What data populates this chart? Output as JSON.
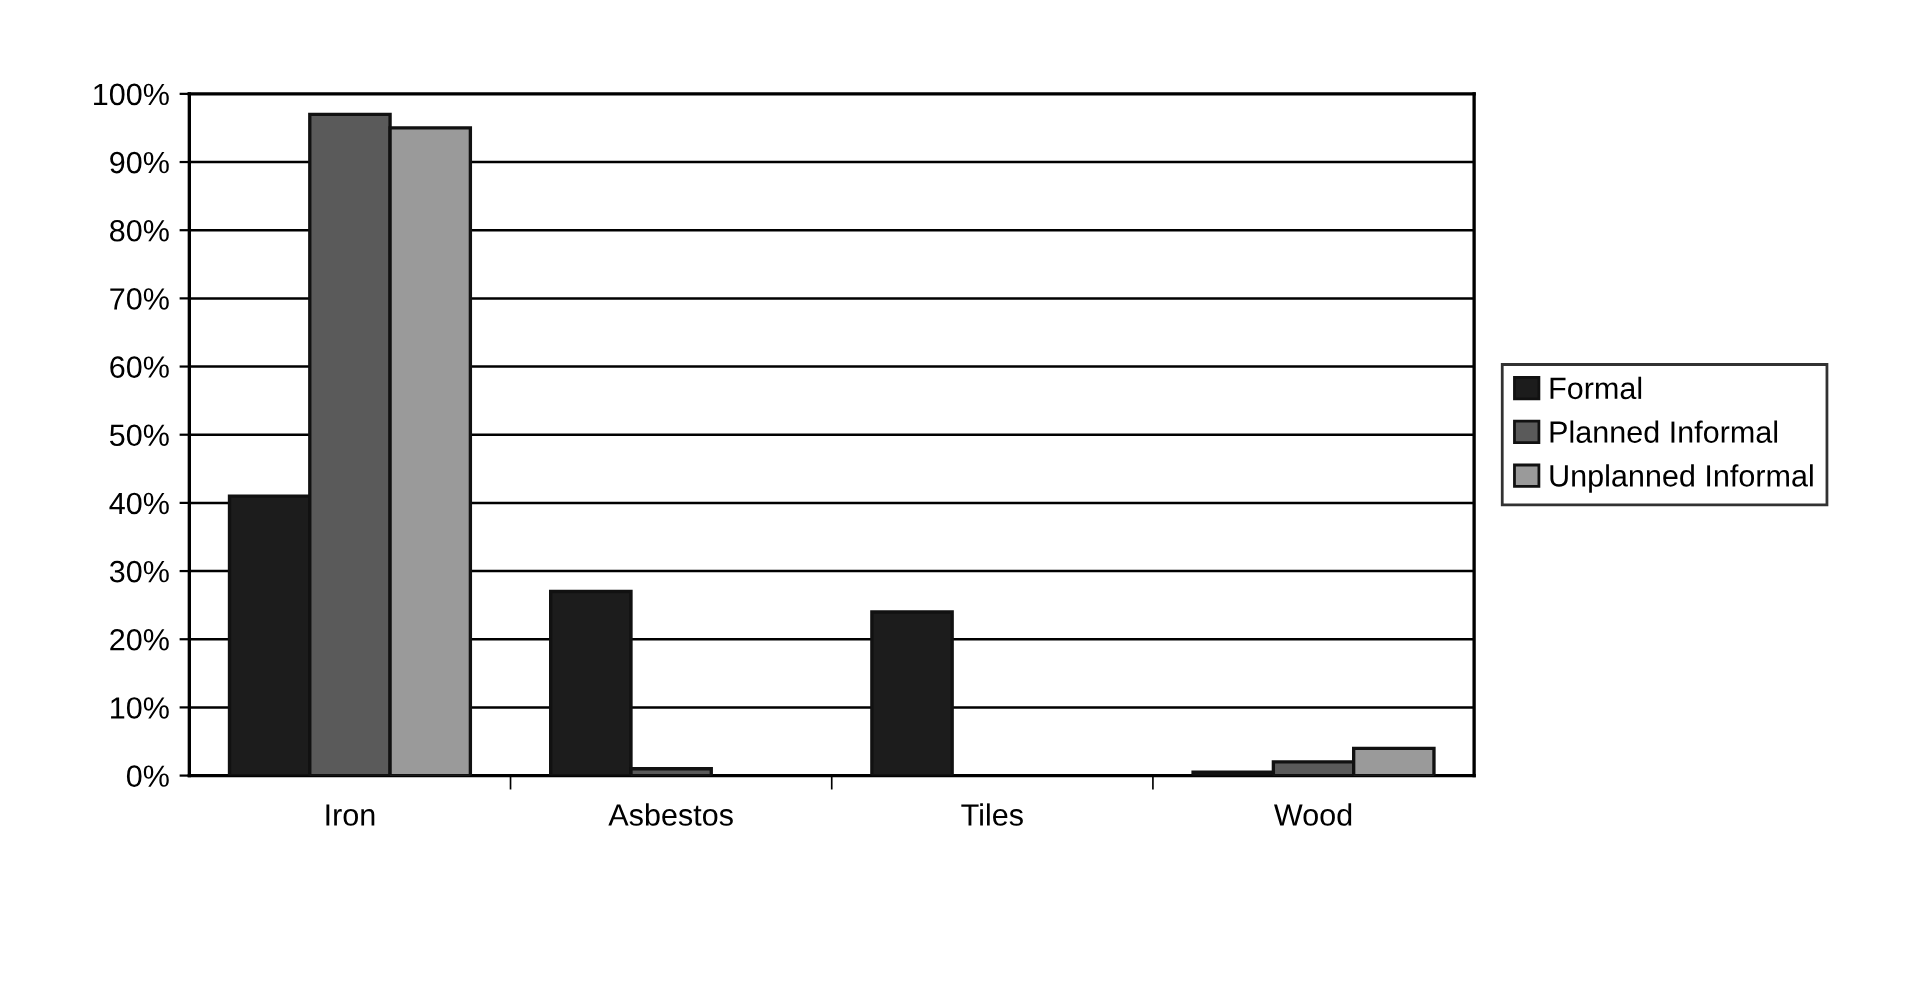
{
  "chart_data": {
    "type": "bar",
    "categories": [
      "Iron",
      "Asbestos",
      "Tiles",
      "Wood"
    ],
    "series": [
      {
        "name": "Formal",
        "color": "#1c1c1c",
        "values": [
          41,
          27,
          24,
          0.5
        ]
      },
      {
        "name": "Planned Informal",
        "color": "#5a5a5a",
        "values": [
          97,
          1,
          null,
          2
        ]
      },
      {
        "name": "Unplanned Informal",
        "color": "#9a9a9a",
        "values": [
          95,
          null,
          null,
          4
        ]
      }
    ],
    "ylim": [
      0,
      100
    ],
    "yticks": [
      {
        "value": 0,
        "label": "0%"
      },
      {
        "value": 10,
        "label": "10%"
      },
      {
        "value": 20,
        "label": "20%"
      },
      {
        "value": 30,
        "label": "30%"
      },
      {
        "value": 40,
        "label": "40%"
      },
      {
        "value": 50,
        "label": "50%"
      },
      {
        "value": 60,
        "label": "60%"
      },
      {
        "value": 70,
        "label": "70%"
      },
      {
        "value": 80,
        "label": "80%"
      },
      {
        "value": 90,
        "label": "90%"
      },
      {
        "value": 100,
        "label": "100%"
      }
    ],
    "grid": "y",
    "legend": "right"
  }
}
